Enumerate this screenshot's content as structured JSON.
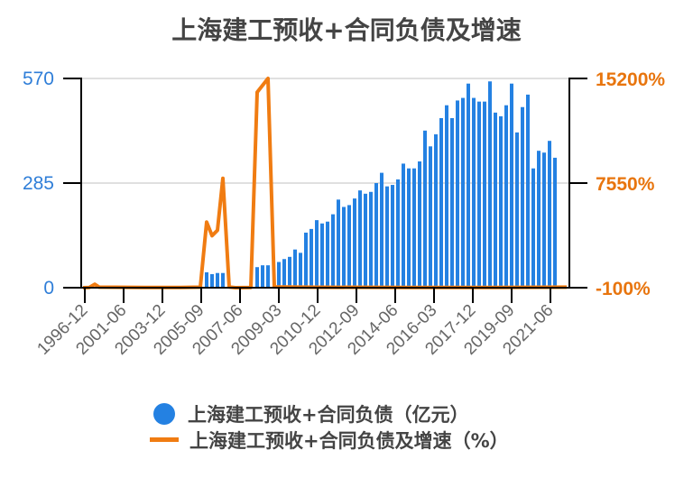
{
  "title": "上海建工预收+合同负债及增速",
  "colors": {
    "bar": "#2481e2",
    "line": "#f07c12",
    "left_axis_text": "#2f7ed8",
    "right_axis_text": "#e8750e",
    "title_text": "#444444",
    "grid": "#e0e0e0"
  },
  "legend": {
    "items": [
      {
        "label": "上海建工预收+合同负债（亿元）",
        "marker": "circle"
      },
      {
        "label": "上海建工预收+合同负债及增速（%）",
        "marker": "line"
      }
    ]
  },
  "chart_data": {
    "type": "bar+line",
    "title": "上海建工预收+合同负债及增速",
    "xlabel": "",
    "ylabel_left": "",
    "ylabel_right": "",
    "left_axis": {
      "ticks": [
        "0",
        "285",
        "570"
      ],
      "range": [
        0,
        570
      ]
    },
    "right_axis": {
      "ticks": [
        "-100%",
        "7550%",
        "15200%"
      ],
      "range": [
        -100,
        15200
      ]
    },
    "x_tick_labels": [
      "1996-12",
      "2001-06",
      "2003-12",
      "2005-09",
      "2007-06",
      "2009-03",
      "2010-12",
      "2012-09",
      "2014-06",
      "2016-03",
      "2017-12",
      "2019-09",
      "2021-06"
    ],
    "grid": true,
    "legend_position": "bottom",
    "series": [
      {
        "name": "上海建工预收+合同负债（亿元）",
        "type": "bar",
        "axis": "left",
        "points": [
          {
            "x": 229,
            "v": 42
          },
          {
            "x": 235,
            "v": 37
          },
          {
            "x": 241,
            "v": 40
          },
          {
            "x": 247,
            "v": 40
          },
          {
            "x": 285,
            "v": 56
          },
          {
            "x": 291,
            "v": 61
          },
          {
            "x": 297,
            "v": 61
          },
          {
            "x": 309,
            "v": 70
          },
          {
            "x": 315,
            "v": 78
          },
          {
            "x": 321,
            "v": 84
          },
          {
            "x": 327,
            "v": 104
          },
          {
            "x": 333,
            "v": 95
          },
          {
            "x": 339,
            "v": 150
          },
          {
            "x": 345,
            "v": 160
          },
          {
            "x": 351,
            "v": 184
          },
          {
            "x": 357,
            "v": 175
          },
          {
            "x": 363,
            "v": 180
          },
          {
            "x": 369,
            "v": 200
          },
          {
            "x": 375,
            "v": 240
          },
          {
            "x": 381,
            "v": 220
          },
          {
            "x": 387,
            "v": 225
          },
          {
            "x": 393,
            "v": 243
          },
          {
            "x": 399,
            "v": 265
          },
          {
            "x": 405,
            "v": 256
          },
          {
            "x": 411,
            "v": 261
          },
          {
            "x": 417,
            "v": 285
          },
          {
            "x": 423,
            "v": 313
          },
          {
            "x": 429,
            "v": 276
          },
          {
            "x": 435,
            "v": 280
          },
          {
            "x": 441,
            "v": 295
          },
          {
            "x": 447,
            "v": 338
          },
          {
            "x": 453,
            "v": 325
          },
          {
            "x": 459,
            "v": 325
          },
          {
            "x": 465,
            "v": 344
          },
          {
            "x": 471,
            "v": 428
          },
          {
            "x": 477,
            "v": 385
          },
          {
            "x": 483,
            "v": 418
          },
          {
            "x": 489,
            "v": 462
          },
          {
            "x": 495,
            "v": 497
          },
          {
            "x": 501,
            "v": 462
          },
          {
            "x": 507,
            "v": 510
          },
          {
            "x": 513,
            "v": 517
          },
          {
            "x": 519,
            "v": 556
          },
          {
            "x": 525,
            "v": 517
          },
          {
            "x": 531,
            "v": 507
          },
          {
            "x": 537,
            "v": 507
          },
          {
            "x": 543,
            "v": 562
          },
          {
            "x": 549,
            "v": 477
          },
          {
            "x": 555,
            "v": 467
          },
          {
            "x": 561,
            "v": 497
          },
          {
            "x": 567,
            "v": 556
          },
          {
            "x": 573,
            "v": 423
          },
          {
            "x": 579,
            "v": 492
          },
          {
            "x": 585,
            "v": 526
          },
          {
            "x": 591,
            "v": 325
          },
          {
            "x": 597,
            "v": 373
          },
          {
            "x": 603,
            "v": 368
          },
          {
            "x": 609,
            "v": 400
          },
          {
            "x": 615,
            "v": 354
          }
        ]
      },
      {
        "name": "上海建工预收+合同负债及增速（%）",
        "type": "line",
        "axis": "right",
        "points": [
          {
            "x": 92,
            "v": -100
          },
          {
            "x": 99,
            "v": -80
          },
          {
            "x": 105,
            "v": 150
          },
          {
            "x": 110,
            "v": -60
          },
          {
            "x": 160,
            "v": -80
          },
          {
            "x": 200,
            "v": -90
          },
          {
            "x": 222,
            "v": -60
          },
          {
            "x": 229,
            "v": 4700
          },
          {
            "x": 235,
            "v": 3700
          },
          {
            "x": 241,
            "v": 4100
          },
          {
            "x": 247,
            "v": 7900
          },
          {
            "x": 254,
            "v": -50
          },
          {
            "x": 261,
            "v": -100
          },
          {
            "x": 278,
            "v": -80
          },
          {
            "x": 285,
            "v": 14200
          },
          {
            "x": 297,
            "v": 15200
          },
          {
            "x": 304,
            "v": -40
          },
          {
            "x": 350,
            "v": -70
          },
          {
            "x": 450,
            "v": -80
          },
          {
            "x": 550,
            "v": -80
          },
          {
            "x": 628,
            "v": -60
          }
        ]
      }
    ]
  }
}
